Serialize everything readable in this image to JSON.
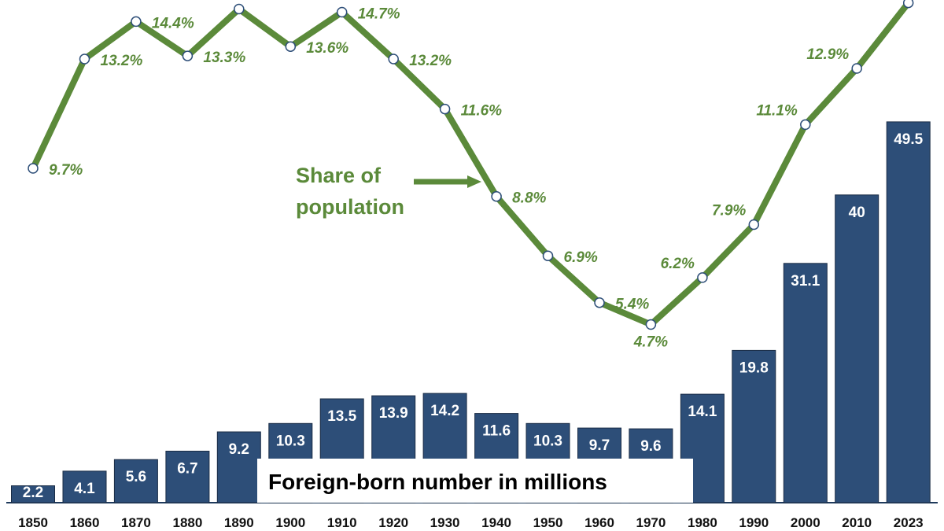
{
  "chart_data": {
    "type": "bar",
    "categories": [
      "1850",
      "1860",
      "1870",
      "1880",
      "1890",
      "1900",
      "1910",
      "1920",
      "1930",
      "1940",
      "1950",
      "1960",
      "1970",
      "1980",
      "1990",
      "2000",
      "2010",
      "2023"
    ],
    "series": [
      {
        "name": "Foreign-born number in millions",
        "type": "bar",
        "values": [
          2.2,
          4.1,
          5.6,
          6.7,
          9.2,
          10.3,
          13.5,
          13.9,
          14.2,
          11.6,
          10.3,
          9.7,
          9.6,
          14.1,
          19.8,
          31.1,
          40,
          49.5
        ],
        "labels": [
          "2.2",
          "4.1",
          "5.6",
          "6.7",
          "9.2",
          "10.3",
          "13.5",
          "13.9",
          "14.2",
          "11.6",
          "10.3",
          "9.7",
          "9.6",
          "14.1",
          "19.8",
          "31.1",
          "40",
          "49.5"
        ]
      },
      {
        "name": "Share of population",
        "type": "line",
        "values": [
          9.7,
          13.2,
          14.4,
          13.3,
          14.8,
          13.6,
          14.7,
          13.2,
          11.6,
          8.8,
          6.9,
          5.4,
          4.7,
          6.2,
          7.9,
          11.1,
          12.9,
          15.0
        ],
        "labels": [
          "9.7%",
          "13.2%",
          "14.4%",
          "13.3%",
          "",
          "13.6%",
          "14.7%",
          "13.2%",
          "11.6%",
          "8.8%",
          "6.9%",
          "5.4%",
          "4.7%",
          "6.2%",
          "7.9%",
          "11.1%",
          "12.9%",
          ""
        ]
      }
    ],
    "annotations": {
      "share_label_line1": "Share of",
      "share_label_line2": "population",
      "number_label": "Foreign-born number in millions"
    },
    "colors": {
      "bar": "#2d4e78",
      "line": "#5b8a3a",
      "marker_fill": "#ffffff",
      "marker_stroke": "#2d4e78"
    }
  }
}
